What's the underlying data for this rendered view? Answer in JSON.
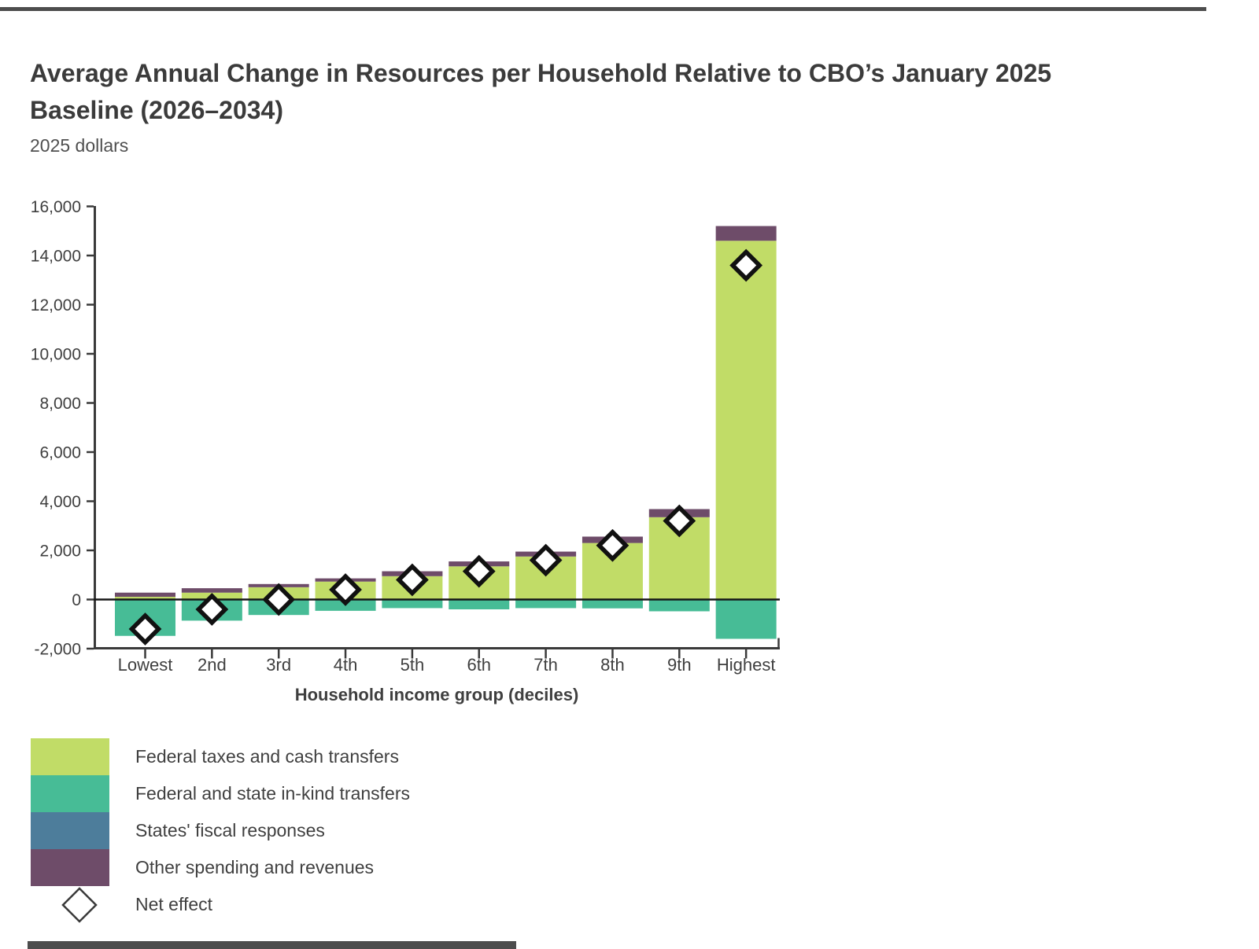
{
  "page": {
    "title_line1": "Average Annual Change in Resources per Household Relative to CBO’s January 2025",
    "title_line2": "Baseline (2026–2034)",
    "subtitle": "2025 dollars"
  },
  "colors": {
    "green": "#c1dc67",
    "teal": "#47bc96",
    "blue": "#4d7d9b",
    "purple": "#6e4c69",
    "axis": "#3a3a3a",
    "text": "#3f3f3f",
    "zero_line": "#161616",
    "diamond_fill": "#ffffff",
    "diamond_stroke": "#111111",
    "legend_diamond_stroke": "#3a3a3a"
  },
  "legend": {
    "items": [
      {
        "label": "Federal taxes and cash transfers",
        "color_key": "green"
      },
      {
        "label": "Federal and state in-kind transfers",
        "color_key": "teal"
      },
      {
        "label": "States' fiscal responses",
        "color_key": "blue"
      },
      {
        "label": "Other spending and revenues",
        "color_key": "purple"
      },
      {
        "label": "Net effect",
        "marker": "diamond"
      }
    ]
  },
  "chart_data": {
    "type": "bar",
    "stacked": true,
    "title": "Average Annual Change in Resources per Household Relative to CBO’s January 2025 Baseline (2026–2034)",
    "subtitle": "2025 dollars",
    "categories": [
      "Lowest",
      "2nd",
      "3rd",
      "4th",
      "5th",
      "6th",
      "7th",
      "8th",
      "9th",
      "Highest"
    ],
    "series": [
      {
        "name": "Federal taxes and cash transfers",
        "color_key": "green",
        "values": [
          110,
          280,
          500,
          730,
          950,
          1350,
          1750,
          2300,
          3350,
          14600
        ]
      },
      {
        "name": "Other spending and revenues",
        "color_key": "purple",
        "values": [
          170,
          180,
          130,
          130,
          200,
          200,
          200,
          260,
          330,
          600
        ]
      },
      {
        "name": "States' fiscal responses",
        "color_key": "blue",
        "values": [
          0,
          0,
          0,
          0,
          0,
          0,
          0,
          0,
          0,
          0
        ]
      },
      {
        "name": "Federal and state in-kind transfers",
        "color_key": "teal",
        "values": [
          -1480,
          -860,
          -630,
          -460,
          -350,
          -400,
          -350,
          -360,
          -480,
          -1600
        ]
      }
    ],
    "markers": {
      "name": "Net effect",
      "shape": "diamond",
      "values": [
        -1200,
        -400,
        0,
        400,
        800,
        1150,
        1600,
        2200,
        3200,
        13600
      ]
    },
    "xlabel": "Household income group (deciles)",
    "ylabel": "",
    "ylim": [
      -2000,
      16000
    ],
    "ytick_step": 2000,
    "grid": false,
    "legend_position": "bottom-left"
  }
}
